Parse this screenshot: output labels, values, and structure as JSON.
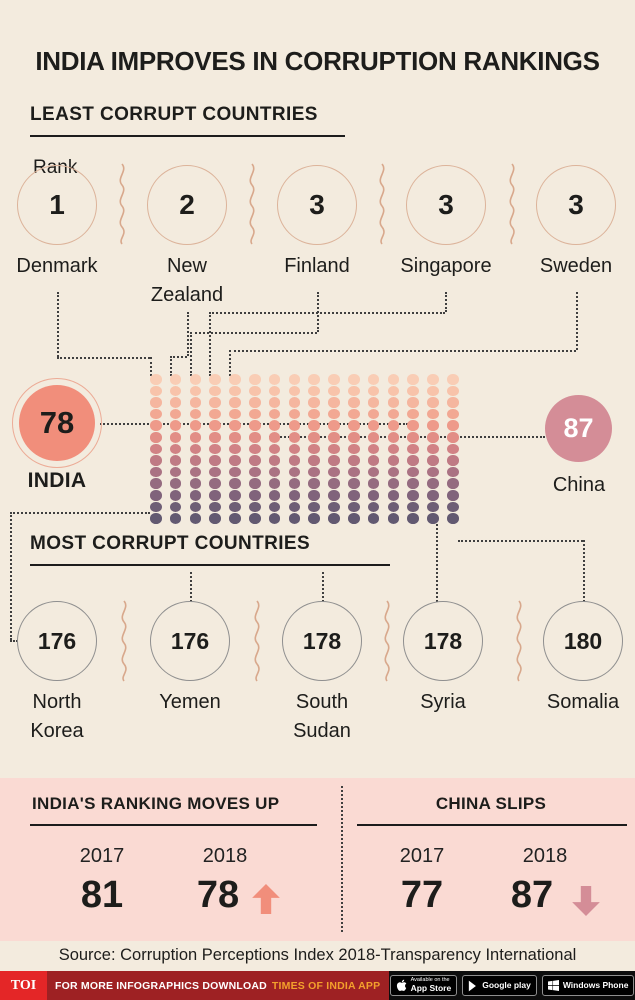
{
  "title": "INDIA IMPROVES IN CORRUPTION RANKINGS",
  "sections": {
    "least_heading": "LEAST CORRUPT COUNTRIES",
    "rank_label": "Rank",
    "most_heading": "MOST CORRUPT COUNTRIES"
  },
  "least_corrupt": [
    {
      "rank": "1",
      "country": "Denmark"
    },
    {
      "rank": "2",
      "country": "New Zealand"
    },
    {
      "rank": "3",
      "country": "Finland"
    },
    {
      "rank": "3",
      "country": "Singapore"
    },
    {
      "rank": "3",
      "country": "Sweden"
    }
  ],
  "most_corrupt": [
    {
      "rank": "176",
      "country": "North Korea"
    },
    {
      "rank": "176",
      "country": "Yemen"
    },
    {
      "rank": "178",
      "country": "South Sudan"
    },
    {
      "rank": "178",
      "country": "Syria"
    },
    {
      "rank": "180",
      "country": "Somalia"
    }
  ],
  "india_highlight": {
    "rank": "78",
    "label": "INDIA"
  },
  "china_highlight": {
    "rank": "87",
    "label": "China"
  },
  "panel": {
    "india_heading": "INDIA'S RANKING MOVES UP",
    "china_heading": "CHINA SLIPS",
    "years": [
      "2017",
      "2018"
    ],
    "india_2017": "81",
    "india_2018": "78",
    "china_2017": "77",
    "china_2018": "87"
  },
  "source": "Source: Corruption Perceptions Index 2018-Transparency International",
  "footer": {
    "logo": "TOI",
    "promo_white": "FOR MORE  INFOGRAPHICS DOWNLOAD",
    "promo_orange": "TIMES OF INDIA APP",
    "badges": [
      {
        "icon": "apple-icon",
        "line1": "Available on the",
        "line2": "App Store"
      },
      {
        "icon": "google-play-icon",
        "line1": "",
        "line2": "Google play"
      },
      {
        "icon": "windows-icon",
        "line1": "",
        "line2": "Windows Phone"
      }
    ]
  },
  "colors": {
    "bg": "#f3ebde",
    "panel_pink": "#fadad3",
    "salmon": "#f18e7b",
    "rose": "#d48d97",
    "circle_outline": "#dcb39a",
    "ink": "#1d1d1b",
    "toi_red": "#e42627",
    "bar_red": "#9e2123",
    "orange": "#f3a02c",
    "badge_border": "#8f8f8f"
  },
  "chart_data": {
    "type": "table",
    "title": "INDIA IMPROVES IN CORRUPTION RANKINGS",
    "least_corrupt": [
      {
        "rank": 1,
        "country": "Denmark"
      },
      {
        "rank": 2,
        "country": "New Zealand"
      },
      {
        "rank": 3,
        "country": "Finland"
      },
      {
        "rank": 3,
        "country": "Singapore"
      },
      {
        "rank": 3,
        "country": "Sweden"
      }
    ],
    "highlighted": [
      {
        "rank": 78,
        "country": "India"
      },
      {
        "rank": 87,
        "country": "China"
      }
    ],
    "most_corrupt": [
      {
        "rank": 176,
        "country": "North Korea"
      },
      {
        "rank": 176,
        "country": "Yemen"
      },
      {
        "rank": 178,
        "country": "South Sudan"
      },
      {
        "rank": 178,
        "country": "Syria"
      },
      {
        "rank": 180,
        "country": "Somalia"
      }
    ],
    "year_comparison": {
      "India": {
        "2017": 81,
        "2018": 78,
        "direction": "up"
      },
      "China": {
        "2017": 77,
        "2018": 87,
        "direction": "down"
      }
    },
    "source": "Corruption Perceptions Index 2018-Transparency International",
    "dot_matrix": {
      "columns": 16,
      "rows": 13,
      "row_colors": [
        "#f9cdb5",
        "#f8c3aa",
        "#f5b69f",
        "#f2a893",
        "#ee9a8a",
        "#e28e86",
        "#d18285",
        "#bf7a84",
        "#aa7283",
        "#956b80",
        "#80637b",
        "#6e5e76",
        "#625971"
      ]
    }
  }
}
